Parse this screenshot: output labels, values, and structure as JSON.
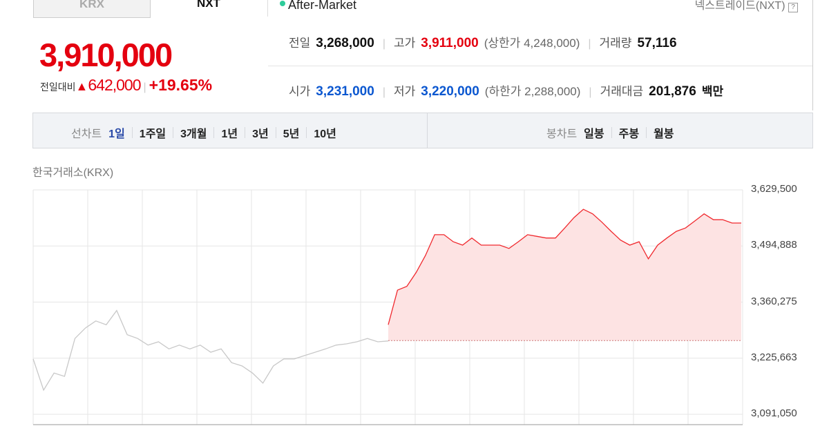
{
  "tabs": [
    {
      "label": "KRX",
      "active": false
    },
    {
      "label": "NXT",
      "active": true
    }
  ],
  "session": {
    "label": "After-Market",
    "dot_color": "#2ecc9a"
  },
  "exchange_link": "넥스트레이드(NXT)",
  "price": {
    "current": "3,910,000",
    "change_label": "전일대비",
    "change": "642,000",
    "change_pct": "+19.65%",
    "direction": "up",
    "color": "#e4000f"
  },
  "stats": {
    "prev_close": {
      "label": "전일",
      "value": "3,268,000"
    },
    "high": {
      "label": "고가",
      "value": "3,911,000",
      "limit_label": "상한가",
      "limit": "4,248,000"
    },
    "volume": {
      "label": "거래량",
      "value": "57,116"
    },
    "open": {
      "label": "시가",
      "value": "3,231,000"
    },
    "low": {
      "label": "저가",
      "value": "3,220,000",
      "limit_label": "하한가",
      "limit": "2,288,000"
    },
    "amount": {
      "label": "거래대금",
      "value": "201,876",
      "unit": "백만"
    }
  },
  "line_chart": {
    "label": "선차트",
    "options": [
      "1일",
      "1주일",
      "3개월",
      "1년",
      "3년",
      "5년",
      "10년"
    ],
    "selected": "1일"
  },
  "candle_chart": {
    "label": "봉차트",
    "options": [
      "일봉",
      "주봉",
      "월봉"
    ]
  },
  "chart_title": "한국거래소(KRX)",
  "chart_data": {
    "type": "line",
    "title": "한국거래소(KRX)",
    "yticks": [
      "3,629,500",
      "3,494,888",
      "3,360,275",
      "3,225,663",
      "3,091,050"
    ],
    "ylim": [
      3091050,
      3629500
    ],
    "baseline": 3268000,
    "grid": true,
    "series": [
      {
        "color": "#c8c8c8",
        "values": [
          3224000,
          3149000,
          3190000,
          3182000,
          3273000,
          3298000,
          3315000,
          3306000,
          3340000,
          3282000,
          3273000,
          3257000,
          3265000,
          3248000,
          3257000,
          3248000,
          3257000,
          3240000,
          3248000,
          3215000,
          3207000,
          3190000,
          3166000,
          3207000,
          3224000,
          3224000,
          3232000,
          3240000,
          3248000,
          3257000,
          3260000,
          3265000,
          3273000,
          3265000,
          3267000
        ]
      },
      {
        "color": "#f0282d",
        "fill": "#fde3e3",
        "values": [
          3306000,
          3389000,
          3398000,
          3431000,
          3472000,
          3522000,
          3522000,
          3505000,
          3497000,
          3514000,
          3497000,
          3497000,
          3497000,
          3489000,
          3505000,
          3522000,
          3518000,
          3514000,
          3514000,
          3538000,
          3563000,
          3583000,
          3572000,
          3552000,
          3530000,
          3509000,
          3497000,
          3505000,
          3464000,
          3497000,
          3514000,
          3530000,
          3538000,
          3555000,
          3572000,
          3558000,
          3558000,
          3550000,
          3550000
        ]
      }
    ]
  }
}
